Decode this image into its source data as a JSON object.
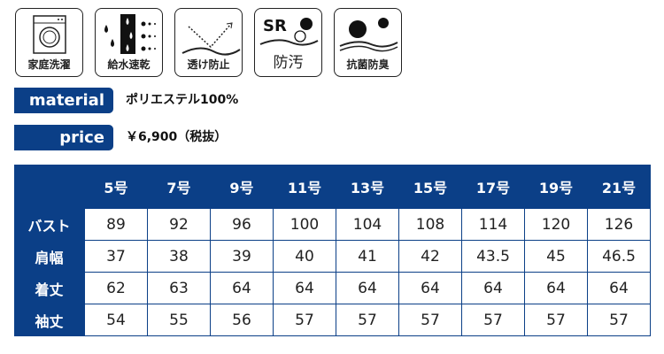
{
  "icons": [
    {
      "name": "washing-machine-icon",
      "label": "家庭洗濯"
    },
    {
      "name": "quick-dry-icon",
      "label": "給水速乾"
    },
    {
      "name": "see-through-prevention-icon",
      "label": "透け防止"
    },
    {
      "name": "stain-resistant-icon",
      "label": "防汚",
      "badge": "SR"
    },
    {
      "name": "antibacterial-deodorant-icon",
      "label": "抗菌防臭"
    }
  ],
  "material": {
    "label": "material",
    "value": "ポリエステル100%"
  },
  "price": {
    "label": "price",
    "value": "￥6,900（税抜）"
  },
  "size_table": {
    "columns": [
      "5号",
      "7号",
      "9号",
      "11号",
      "13号",
      "15号",
      "17号",
      "19号",
      "21号"
    ],
    "rows": [
      {
        "label": "バスト",
        "values": [
          "89",
          "92",
          "96",
          "100",
          "104",
          "108",
          "114",
          "120",
          "126"
        ]
      },
      {
        "label": "肩幅",
        "values": [
          "37",
          "38",
          "39",
          "40",
          "41",
          "42",
          "43.5",
          "45",
          "46.5"
        ]
      },
      {
        "label": "着丈",
        "values": [
          "62",
          "63",
          "64",
          "64",
          "64",
          "64",
          "64",
          "64",
          "64"
        ]
      },
      {
        "label": "袖丈",
        "values": [
          "54",
          "55",
          "56",
          "57",
          "57",
          "57",
          "57",
          "57",
          "57"
        ]
      }
    ]
  },
  "colors": {
    "accent": "#0b3f87"
  }
}
